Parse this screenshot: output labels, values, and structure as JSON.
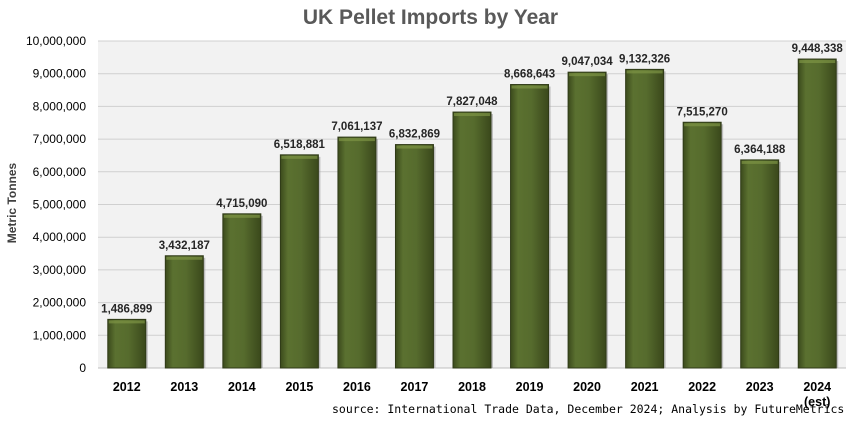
{
  "chart_data": {
    "type": "bar",
    "title": "UK Pellet Imports by Year",
    "ylabel": "Metric Tonnes",
    "xlabel": "",
    "categories": [
      "2012",
      "2013",
      "2014",
      "2015",
      "2016",
      "2017",
      "2018",
      "2019",
      "2020",
      "2021",
      "2022",
      "2023",
      "2024"
    ],
    "category_sublabels": [
      "",
      "",
      "",
      "",
      "",
      "",
      "",
      "",
      "",
      "",
      "",
      "",
      "(est)"
    ],
    "values": [
      1486899,
      3432187,
      4715090,
      6518881,
      7061137,
      6832869,
      7827048,
      8668643,
      9047034,
      9132326,
      7515270,
      6364188,
      9448338
    ],
    "value_labels": [
      "1,486,899",
      "3,432,187",
      "4,715,090",
      "6,518,881",
      "7,061,137",
      "6,832,869",
      "7,827,048",
      "8,668,643",
      "9,047,034",
      "9,132,326",
      "7,515,270",
      "6,364,188",
      "9,448,338"
    ],
    "ylim": [
      0,
      10000000
    ],
    "yticks": [
      0,
      1000000,
      2000000,
      3000000,
      4000000,
      5000000,
      6000000,
      7000000,
      8000000,
      9000000,
      10000000
    ],
    "ytick_labels": [
      "0",
      "1,000,000",
      "2,000,000",
      "3,000,000",
      "4,000,000",
      "5,000,000",
      "6,000,000",
      "7,000,000",
      "8,000,000",
      "9,000,000",
      "10,000,000"
    ],
    "grid": true,
    "bar_color": "#4f6228",
    "bar_edge_color": "#2f3a17"
  },
  "source_note": "source: International Trade Data, December 2024; Analysis by FutureMetrics"
}
